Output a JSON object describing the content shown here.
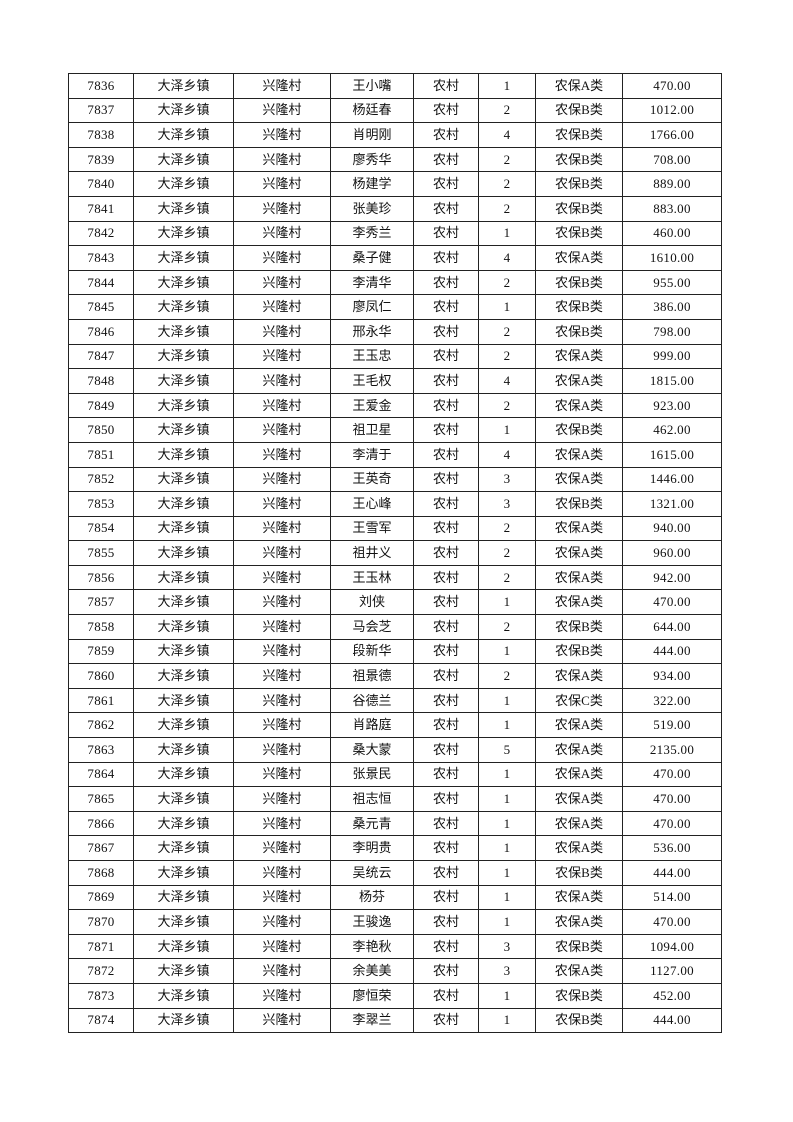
{
  "table": {
    "rows": [
      [
        "7836",
        "大泽乡镇",
        "兴隆村",
        "王小嘴",
        "农村",
        "1",
        "农保A类",
        "470.00"
      ],
      [
        "7837",
        "大泽乡镇",
        "兴隆村",
        "杨廷春",
        "农村",
        "2",
        "农保B类",
        "1012.00"
      ],
      [
        "7838",
        "大泽乡镇",
        "兴隆村",
        "肖明刚",
        "农村",
        "4",
        "农保B类",
        "1766.00"
      ],
      [
        "7839",
        "大泽乡镇",
        "兴隆村",
        "廖秀华",
        "农村",
        "2",
        "农保B类",
        "708.00"
      ],
      [
        "7840",
        "大泽乡镇",
        "兴隆村",
        "杨建学",
        "农村",
        "2",
        "农保B类",
        "889.00"
      ],
      [
        "7841",
        "大泽乡镇",
        "兴隆村",
        "张美珍",
        "农村",
        "2",
        "农保B类",
        "883.00"
      ],
      [
        "7842",
        "大泽乡镇",
        "兴隆村",
        "李秀兰",
        "农村",
        "1",
        "农保B类",
        "460.00"
      ],
      [
        "7843",
        "大泽乡镇",
        "兴隆村",
        "桑子健",
        "农村",
        "4",
        "农保A类",
        "1610.00"
      ],
      [
        "7844",
        "大泽乡镇",
        "兴隆村",
        "李清华",
        "农村",
        "2",
        "农保B类",
        "955.00"
      ],
      [
        "7845",
        "大泽乡镇",
        "兴隆村",
        "廖凤仁",
        "农村",
        "1",
        "农保B类",
        "386.00"
      ],
      [
        "7846",
        "大泽乡镇",
        "兴隆村",
        "邢永华",
        "农村",
        "2",
        "农保B类",
        "798.00"
      ],
      [
        "7847",
        "大泽乡镇",
        "兴隆村",
        "王玉忠",
        "农村",
        "2",
        "农保A类",
        "999.00"
      ],
      [
        "7848",
        "大泽乡镇",
        "兴隆村",
        "王毛权",
        "农村",
        "4",
        "农保A类",
        "1815.00"
      ],
      [
        "7849",
        "大泽乡镇",
        "兴隆村",
        "王爱金",
        "农村",
        "2",
        "农保A类",
        "923.00"
      ],
      [
        "7850",
        "大泽乡镇",
        "兴隆村",
        "祖卫星",
        "农村",
        "1",
        "农保B类",
        "462.00"
      ],
      [
        "7851",
        "大泽乡镇",
        "兴隆村",
        "李清于",
        "农村",
        "4",
        "农保A类",
        "1615.00"
      ],
      [
        "7852",
        "大泽乡镇",
        "兴隆村",
        "王英奇",
        "农村",
        "3",
        "农保A类",
        "1446.00"
      ],
      [
        "7853",
        "大泽乡镇",
        "兴隆村",
        "王心峰",
        "农村",
        "3",
        "农保B类",
        "1321.00"
      ],
      [
        "7854",
        "大泽乡镇",
        "兴隆村",
        "王雪军",
        "农村",
        "2",
        "农保A类",
        "940.00"
      ],
      [
        "7855",
        "大泽乡镇",
        "兴隆村",
        "祖井义",
        "农村",
        "2",
        "农保A类",
        "960.00"
      ],
      [
        "7856",
        "大泽乡镇",
        "兴隆村",
        "王玉林",
        "农村",
        "2",
        "农保A类",
        "942.00"
      ],
      [
        "7857",
        "大泽乡镇",
        "兴隆村",
        "刘侠",
        "农村",
        "1",
        "农保A类",
        "470.00"
      ],
      [
        "7858",
        "大泽乡镇",
        "兴隆村",
        "马会芝",
        "农村",
        "2",
        "农保B类",
        "644.00"
      ],
      [
        "7859",
        "大泽乡镇",
        "兴隆村",
        "段新华",
        "农村",
        "1",
        "农保B类",
        "444.00"
      ],
      [
        "7860",
        "大泽乡镇",
        "兴隆村",
        "祖景德",
        "农村",
        "2",
        "农保A类",
        "934.00"
      ],
      [
        "7861",
        "大泽乡镇",
        "兴隆村",
        "谷德兰",
        "农村",
        "1",
        "农保C类",
        "322.00"
      ],
      [
        "7862",
        "大泽乡镇",
        "兴隆村",
        "肖路庭",
        "农村",
        "1",
        "农保A类",
        "519.00"
      ],
      [
        "7863",
        "大泽乡镇",
        "兴隆村",
        "桑大蒙",
        "农村",
        "5",
        "农保A类",
        "2135.00"
      ],
      [
        "7864",
        "大泽乡镇",
        "兴隆村",
        "张景民",
        "农村",
        "1",
        "农保A类",
        "470.00"
      ],
      [
        "7865",
        "大泽乡镇",
        "兴隆村",
        "祖志恒",
        "农村",
        "1",
        "农保A类",
        "470.00"
      ],
      [
        "7866",
        "大泽乡镇",
        "兴隆村",
        "桑元青",
        "农村",
        "1",
        "农保A类",
        "470.00"
      ],
      [
        "7867",
        "大泽乡镇",
        "兴隆村",
        "李明贵",
        "农村",
        "1",
        "农保A类",
        "536.00"
      ],
      [
        "7868",
        "大泽乡镇",
        "兴隆村",
        "吴统云",
        "农村",
        "1",
        "农保B类",
        "444.00"
      ],
      [
        "7869",
        "大泽乡镇",
        "兴隆村",
        "杨芬",
        "农村",
        "1",
        "农保A类",
        "514.00"
      ],
      [
        "7870",
        "大泽乡镇",
        "兴隆村",
        "王骏逸",
        "农村",
        "1",
        "农保A类",
        "470.00"
      ],
      [
        "7871",
        "大泽乡镇",
        "兴隆村",
        "李艳秋",
        "农村",
        "3",
        "农保B类",
        "1094.00"
      ],
      [
        "7872",
        "大泽乡镇",
        "兴隆村",
        "余美美",
        "农村",
        "3",
        "农保A类",
        "1127.00"
      ],
      [
        "7873",
        "大泽乡镇",
        "兴隆村",
        "廖恒荣",
        "农村",
        "1",
        "农保B类",
        "452.00"
      ],
      [
        "7874",
        "大泽乡镇",
        "兴隆村",
        "李翠兰",
        "农村",
        "1",
        "农保B类",
        "444.00"
      ]
    ]
  }
}
